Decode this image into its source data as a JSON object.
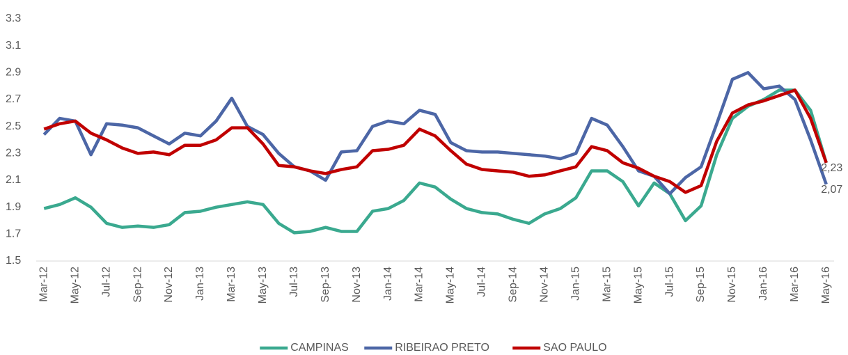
{
  "chart_data": {
    "type": "line",
    "categories": [
      "Mar-12",
      null,
      "May-12",
      null,
      "Jul-12",
      null,
      "Sep-12",
      null,
      "Nov-12",
      null,
      "Jan-13",
      null,
      "Mar-13",
      null,
      "May-13",
      null,
      "Jul-13",
      null,
      "Sep-13",
      null,
      "Nov-13",
      null,
      "Jan-14",
      null,
      "Mar-14",
      null,
      "May-14",
      null,
      "Jul-14",
      null,
      "Sep-14",
      null,
      "Nov-14",
      null,
      "Jan-15",
      null,
      "Mar-15",
      null,
      "May-15",
      null,
      "Jul-15",
      null,
      "Sep-15",
      null,
      "Nov-15",
      null,
      "Jan-16",
      null,
      "Mar-16",
      null,
      "May-16"
    ],
    "series": [
      {
        "name": "CAMPINAS",
        "color": "#3aa98f",
        "values": [
          1.89,
          1.92,
          1.97,
          1.9,
          1.78,
          1.75,
          1.76,
          1.75,
          1.77,
          1.86,
          1.87,
          1.9,
          1.92,
          1.94,
          1.92,
          1.78,
          1.71,
          1.72,
          1.75,
          1.72,
          1.72,
          1.87,
          1.89,
          1.95,
          2.08,
          2.05,
          1.96,
          1.89,
          1.86,
          1.85,
          1.81,
          1.78,
          1.85,
          1.89,
          1.97,
          2.17,
          2.17,
          2.09,
          1.91,
          2.08,
          2.0,
          1.8,
          1.91,
          2.29,
          2.56,
          2.65,
          2.7,
          2.77,
          2.77,
          2.62,
          2.23
        ]
      },
      {
        "name": "RIBEIRAO PRETO",
        "color": "#4c66a6",
        "values": [
          2.44,
          2.56,
          2.54,
          2.29,
          2.52,
          2.51,
          2.49,
          2.43,
          2.37,
          2.45,
          2.43,
          2.54,
          2.71,
          2.5,
          2.44,
          2.3,
          2.2,
          2.17,
          2.1,
          2.31,
          2.32,
          2.5,
          2.54,
          2.52,
          2.62,
          2.59,
          2.38,
          2.32,
          2.31,
          2.31,
          2.3,
          2.29,
          2.28,
          2.26,
          2.3,
          2.56,
          2.51,
          2.35,
          2.17,
          2.13,
          2.0,
          2.12,
          2.2,
          2.52,
          2.85,
          2.9,
          2.78,
          2.8,
          2.7,
          2.4,
          2.07
        ],
        "value_labels": [
          null,
          null,
          null,
          null,
          null,
          null,
          null,
          null,
          null,
          null,
          null,
          null,
          null,
          null,
          null,
          null,
          null,
          null,
          null,
          null,
          null,
          null,
          null,
          null,
          null,
          null,
          null,
          null,
          null,
          null,
          null,
          null,
          null,
          null,
          null,
          null,
          null,
          null,
          null,
          null,
          null,
          null,
          null,
          null,
          null,
          null,
          null,
          null,
          null,
          null,
          "2,07"
        ]
      },
      {
        "name": "SAO PAULO",
        "color": "#c00000",
        "values": [
          2.48,
          2.52,
          2.54,
          2.45,
          2.4,
          2.34,
          2.3,
          2.31,
          2.29,
          2.36,
          2.36,
          2.4,
          2.49,
          2.49,
          2.37,
          2.21,
          2.2,
          2.17,
          2.15,
          2.18,
          2.2,
          2.32,
          2.33,
          2.36,
          2.48,
          2.43,
          2.32,
          2.22,
          2.18,
          2.17,
          2.16,
          2.13,
          2.14,
          2.17,
          2.2,
          2.35,
          2.32,
          2.23,
          2.19,
          2.13,
          2.09,
          2.01,
          2.06,
          2.39,
          2.6,
          2.66,
          2.69,
          2.73,
          2.77,
          2.56,
          2.23
        ],
        "value_labels": [
          null,
          null,
          null,
          null,
          null,
          null,
          null,
          null,
          null,
          null,
          null,
          null,
          null,
          null,
          null,
          null,
          null,
          null,
          null,
          null,
          null,
          null,
          null,
          null,
          null,
          null,
          null,
          null,
          null,
          null,
          null,
          null,
          null,
          null,
          null,
          null,
          null,
          null,
          null,
          null,
          null,
          null,
          null,
          null,
          null,
          null,
          null,
          null,
          null,
          null,
          "2,23"
        ]
      }
    ],
    "ylim": [
      1.5,
      3.3
    ],
    "yticks": [
      1.5,
      1.7,
      1.9,
      2.1,
      2.3,
      2.5,
      2.7,
      2.9,
      3.1,
      3.3
    ],
    "grid": false,
    "legend": "bottom"
  }
}
